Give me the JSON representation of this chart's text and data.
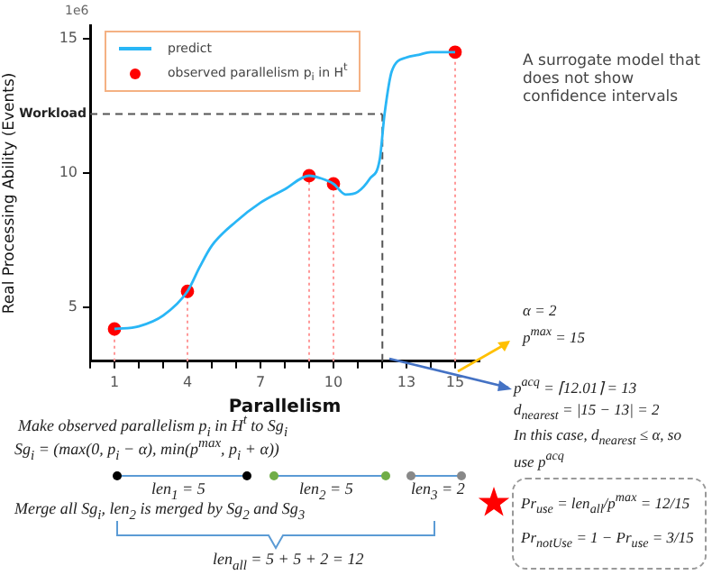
{
  "chart_data": {
    "type": "line",
    "xlabel": "Parallelism",
    "ylabel": "Real Processing Ability (Events)",
    "xlim": [
      0,
      16
    ],
    "ylim": [
      3,
      15.5
    ],
    "xticks": [
      {
        "value": 0,
        "label": null
      },
      1,
      {
        "value": 2,
        "label": null
      },
      {
        "value": 3,
        "label": null
      },
      4,
      {
        "value": 5,
        "label": null
      },
      {
        "value": 6,
        "label": null
      },
      7,
      {
        "value": 8,
        "label": null
      },
      {
        "value": 9,
        "label": null
      },
      10,
      {
        "value": 11,
        "label": null
      },
      {
        "value": 12,
        "label": null
      },
      13,
      {
        "value": 14,
        "label": null
      },
      15
    ],
    "yticks": [
      5,
      10,
      15
    ],
    "grid": false,
    "legend": "top left",
    "series": [
      {
        "name": "predict",
        "type": "line",
        "color": "#29b6f6",
        "marker": "none",
        "x": [
          1,
          2,
          3,
          4,
          4.5,
          5,
          6,
          7,
          8,
          9,
          9.5,
          10,
          10.5,
          11,
          11.5,
          11.9,
          12.1,
          12.4,
          13,
          13.5,
          14,
          15
        ],
        "values": [
          4.2,
          4.3,
          4.7,
          5.6,
          6.5,
          7.3,
          8.2,
          8.9,
          9.4,
          9.9,
          9.8,
          9.6,
          9.2,
          9.3,
          9.8,
          10.5,
          12.2,
          13.8,
          14.3,
          14.4,
          14.5,
          14.5
        ]
      },
      {
        "name": "observed parallelism p$_{i}$ in H$^{t}$",
        "type": "scatter",
        "color": "#ff0000",
        "marker": "circle",
        "x": [
          1,
          4,
          9,
          10,
          15
        ],
        "values": [
          4.2,
          5.6,
          9.9,
          9.6,
          14.5
        ]
      }
    ],
    "ref_lines": [
      {
        "axis": "y",
        "value": 12.2,
        "label": "Workload",
        "line_style": "dashed",
        "color": "#555555"
      },
      {
        "axis": "x",
        "value": 12.01,
        "line_style": "dashed",
        "color": "#555555"
      },
      {
        "axis": "x",
        "value": 1,
        "line_style": "dotted",
        "color": "#ff9999"
      },
      {
        "axis": "x",
        "value": 4,
        "line_style": "dotted",
        "color": "#ff9999"
      },
      {
        "axis": "x",
        "value": 9,
        "line_style": "dotted",
        "color": "#ff9999"
      },
      {
        "axis": "x",
        "value": 10,
        "line_style": "dotted",
        "color": "#ff9999"
      },
      {
        "axis": "x",
        "value": 15,
        "line_style": "dotted",
        "color": "#ff9999"
      }
    ],
    "annotations": [
      "1e6",
      "A surrogate model that does not show confidence intervals",
      "Make observed parallelism p$_{i}$ in H$^{t}$ to Sg$_{i}$",
      "Sg$_{i}$ = (max(0, p$_{i}$ − α), min(p$^{max}$, p$_{i}$ + α))",
      "len$_{1}$ = 5",
      "len$_{2}$ = 5",
      "len$_{3}$ = 2",
      "Merge all Sg$_{i}$, len$_{2}$ is merged by Sg$_{2}$ and Sg$_{3}$",
      "len$_{all}$ = 5 + 5 + 2 = 12",
      "α = 2",
      "p$^{max}$ = 15",
      "p$^{acq}$ = ⌈12.01⌉ = 13",
      "d$_{nearest}$ = |15 − 13| = 2",
      "In this case, d$_{nearest}$ ≤ α, so use p$^{acq}$",
      "Pr$_{use}$ = len$_{all}$/p$^{max}$ = 12/15",
      "Pr$_{notUse}$ = 1 − Pr$_{use}$ = 3/15"
    ]
  }
}
